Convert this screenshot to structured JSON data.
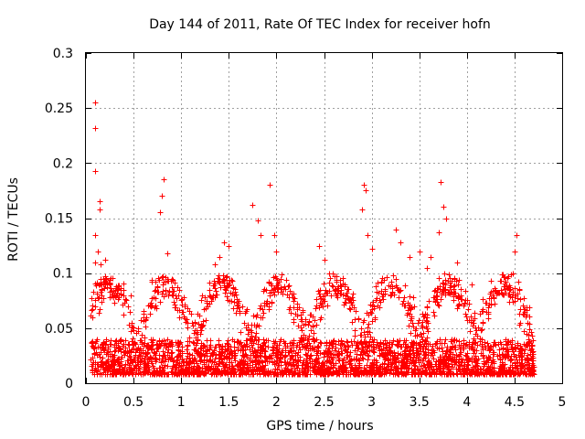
{
  "chart_data": {
    "type": "scatter",
    "title": "Day 144 of 2011, Rate Of TEC Index for receiver hofn",
    "xlabel": "GPS time / hours",
    "ylabel": "ROTI / TECUs",
    "xlim": [
      0,
      5
    ],
    "ylim": [
      0,
      0.3
    ],
    "x_ticks": [
      0,
      0.5,
      1,
      1.5,
      2,
      2.5,
      3,
      3.5,
      4,
      4.5,
      5
    ],
    "x_tick_labels": [
      "0",
      "0.5",
      "1",
      "1.5",
      "2",
      "2.5",
      "3",
      "3.5",
      "4",
      "4.5",
      "5"
    ],
    "y_ticks": [
      0,
      0.05,
      0.1,
      0.15,
      0.2,
      0.25,
      0.3
    ],
    "y_tick_labels": [
      "0",
      "0.05",
      "0.1",
      "0.15",
      "0.2",
      "0.25",
      "0.3"
    ],
    "grid": true,
    "marker": "+",
    "color": "#ff0000",
    "series": [
      {
        "name": "ROTI",
        "x_range": [
          0.05,
          4.7
        ],
        "points": [
          [
            0.1,
            0.255
          ],
          [
            0.1,
            0.232
          ],
          [
            0.1,
            0.193
          ],
          [
            0.1,
            0.135
          ],
          [
            0.14,
            0.165
          ],
          [
            0.14,
            0.158
          ],
          [
            0.12,
            0.12
          ],
          [
            0.1,
            0.11
          ],
          [
            0.15,
            0.108
          ],
          [
            0.2,
            0.112
          ],
          [
            0.18,
            0.095
          ],
          [
            0.25,
            0.09
          ],
          [
            0.82,
            0.185
          ],
          [
            0.8,
            0.17
          ],
          [
            0.78,
            0.155
          ],
          [
            0.85,
            0.118
          ],
          [
            1.45,
            0.128
          ],
          [
            1.5,
            0.125
          ],
          [
            1.4,
            0.115
          ],
          [
            1.35,
            0.108
          ],
          [
            1.75,
            0.162
          ],
          [
            1.8,
            0.148
          ],
          [
            1.83,
            0.135
          ],
          [
            1.93,
            0.18
          ],
          [
            1.98,
            0.135
          ],
          [
            2.0,
            0.12
          ],
          [
            2.45,
            0.125
          ],
          [
            2.5,
            0.112
          ],
          [
            2.55,
            0.1
          ],
          [
            2.92,
            0.18
          ],
          [
            2.94,
            0.175
          ],
          [
            2.9,
            0.158
          ],
          [
            2.96,
            0.135
          ],
          [
            3.0,
            0.122
          ],
          [
            3.25,
            0.14
          ],
          [
            3.3,
            0.128
          ],
          [
            3.4,
            0.115
          ],
          [
            3.5,
            0.12
          ],
          [
            3.58,
            0.105
          ],
          [
            3.62,
            0.115
          ],
          [
            3.72,
            0.183
          ],
          [
            3.75,
            0.16
          ],
          [
            3.78,
            0.15
          ],
          [
            3.7,
            0.137
          ],
          [
            3.9,
            0.11
          ],
          [
            4.05,
            0.09
          ],
          [
            4.3,
            0.085
          ],
          [
            4.52,
            0.135
          ],
          [
            4.5,
            0.12
          ],
          [
            4.48,
            0.1
          ],
          [
            4.55,
            0.085
          ]
        ],
        "typical_band": [
          0.008,
          0.04
        ],
        "note": "dense cluster of several thousand points mostly between 0.01 and 0.05 across the full x range"
      }
    ]
  }
}
